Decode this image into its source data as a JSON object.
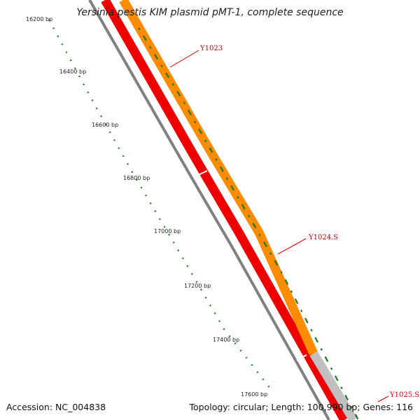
{
  "title": "Yersinia pestis KIM plasmid pMT-1, complete sequence",
  "position_labels": [
    "16200 bp",
    "16400 bp",
    "16600 bp",
    "16800 bp",
    "17000 bp",
    "17200 bp",
    "17400 bp",
    "17600 bp"
  ],
  "genes": [
    {
      "name": "Y1023"
    },
    {
      "name": "Y1024.S"
    },
    {
      "name": "Y1025.S"
    }
  ],
  "accession_text": "Accession: NC_004838",
  "summary_text": "Topology: circular; Length: 100,990 bp; Genes: 116",
  "colors": {
    "backbone": "#808080",
    "forward_gene": "#ff8c00",
    "reverse_gene": "#ee0000",
    "uncolored_gene": "#c0c0c0",
    "ticks": "#1a7a1a",
    "label_lines": "#dd0000"
  }
}
